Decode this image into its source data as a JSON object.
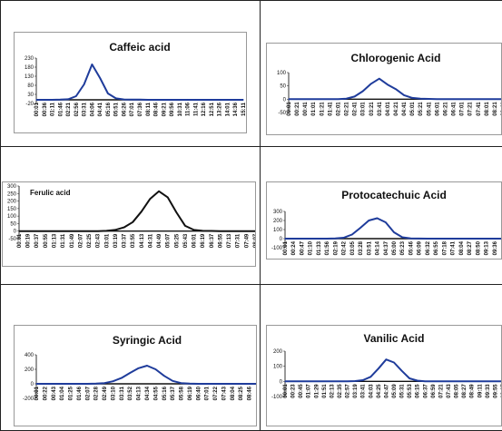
{
  "chart_data": [
    {
      "type": "line",
      "title": "Caffeic acid",
      "color": "#1f3c9b",
      "ylim": [
        -20,
        230
      ],
      "yticks": [
        230,
        180,
        130,
        80,
        30,
        -20
      ],
      "categories": [
        "00:01",
        "00:36",
        "01:11",
        "01:46",
        "02:21",
        "02:56",
        "03:31",
        "04:06",
        "04:41",
        "05:16",
        "05:51",
        "06:26",
        "07:01",
        "07:36",
        "08:11",
        "08:46",
        "09:21",
        "09:56",
        "10:31",
        "11:06",
        "11:41",
        "12:16",
        "12:51",
        "13:26",
        "14:01",
        "14:36",
        "15:11"
      ],
      "series": [
        {
          "values": [
            0,
            0,
            0,
            1,
            3,
            20,
            85,
            195,
            120,
            35,
            8,
            2,
            1,
            1,
            0,
            0,
            0,
            0,
            0,
            0,
            0,
            0,
            0,
            0,
            0,
            0,
            0
          ]
        }
      ]
    },
    {
      "type": "line",
      "title": "Chlorogenic Acid",
      "color": "#1f3c9b",
      "ylim": [
        -50,
        100
      ],
      "yticks": [
        100,
        50,
        0,
        -50
      ],
      "categories": [
        "00:01",
        "00:21",
        "00:41",
        "01:01",
        "01:21",
        "01:41",
        "02:01",
        "02:21",
        "02:41",
        "03:01",
        "03:21",
        "03:41",
        "04:01",
        "04:21",
        "04:41",
        "05:01",
        "05:21",
        "05:41",
        "06:01",
        "06:21",
        "06:41",
        "07:01",
        "07:21",
        "07:41",
        "08:01",
        "08:21",
        "08:41"
      ],
      "series": [
        {
          "values": [
            0,
            0,
            0,
            0,
            0,
            0,
            0,
            2,
            10,
            30,
            58,
            77,
            55,
            38,
            15,
            5,
            2,
            1,
            0,
            0,
            0,
            0,
            0,
            0,
            0,
            0,
            0
          ]
        }
      ]
    },
    {
      "type": "line",
      "title": "Ferulic acid",
      "color": "#111111",
      "ylim": [
        -50,
        300
      ],
      "yticks": [
        300,
        250,
        200,
        150,
        100,
        50,
        0,
        -50
      ],
      "categories": [
        "00:01",
        "00:19",
        "00:37",
        "00:55",
        "01:13",
        "01:31",
        "01:49",
        "02:07",
        "02:25",
        "02:43",
        "03:01",
        "03:19",
        "03:37",
        "03:55",
        "04:13",
        "04:31",
        "04:49",
        "05:07",
        "05:25",
        "05:43",
        "06:01",
        "06:19",
        "06:37",
        "06:55",
        "07:13",
        "07:31",
        "07:49",
        "08:07"
      ],
      "series": [
        {
          "values": [
            0,
            0,
            0,
            0,
            0,
            0,
            0,
            0,
            0,
            0,
            2,
            8,
            25,
            60,
            130,
            215,
            265,
            225,
            125,
            35,
            8,
            2,
            1,
            0,
            0,
            0,
            0,
            0
          ]
        }
      ]
    },
    {
      "type": "line",
      "title": "Protocatechuic Acid",
      "color": "#1f3c9b",
      "ylim": [
        -100,
        300
      ],
      "yticks": [
        300,
        200,
        100,
        0,
        -100
      ],
      "categories": [
        "00:01",
        "00:24",
        "00:47",
        "01:10",
        "01:33",
        "01:56",
        "02:19",
        "02:42",
        "03:05",
        "03:28",
        "03:51",
        "04:14",
        "04:37",
        "05:00",
        "05:23",
        "05:46",
        "06:09",
        "06:32",
        "06:55",
        "07:18",
        "07:41",
        "08:04",
        "08:27",
        "08:50",
        "09:13",
        "09:36",
        "09:59"
      ],
      "series": [
        {
          "values": [
            0,
            0,
            0,
            0,
            0,
            0,
            2,
            10,
            45,
            120,
            200,
            225,
            180,
            70,
            15,
            3,
            1,
            0,
            0,
            0,
            0,
            0,
            0,
            0,
            0,
            0,
            0
          ]
        }
      ]
    },
    {
      "type": "line",
      "title": "Syringic Acid",
      "color": "#1f3c9b",
      "ylim": [
        -200,
        400
      ],
      "yticks": [
        400,
        200,
        0,
        -200
      ],
      "categories": [
        "00:01",
        "00:22",
        "00:43",
        "01:04",
        "01:25",
        "01:46",
        "02:07",
        "02:28",
        "02:49",
        "03:10",
        "03:31",
        "03:52",
        "04:13",
        "04:34",
        "04:55",
        "05:16",
        "05:37",
        "05:58",
        "06:19",
        "06:40",
        "07:01",
        "07:22",
        "07:43",
        "08:04",
        "08:25",
        "08:46",
        "09:07"
      ],
      "series": [
        {
          "values": [
            0,
            0,
            0,
            0,
            0,
            0,
            0,
            2,
            10,
            35,
            80,
            150,
            215,
            250,
            200,
            110,
            40,
            10,
            2,
            0,
            0,
            0,
            0,
            0,
            0,
            0,
            0
          ]
        }
      ]
    },
    {
      "type": "line",
      "title": "Vanilic Acid",
      "color": "#1f3c9b",
      "ylim": [
        -100,
        200
      ],
      "yticks": [
        200,
        100,
        0,
        -100
      ],
      "categories": [
        "00:01",
        "00:23",
        "00:45",
        "01:07",
        "01:29",
        "01:51",
        "02:13",
        "02:35",
        "02:57",
        "03:19",
        "03:41",
        "04:03",
        "04:25",
        "04:47",
        "05:09",
        "05:31",
        "05:53",
        "06:15",
        "06:37",
        "06:59",
        "07:21",
        "07:43",
        "08:05",
        "08:27",
        "08:49",
        "09:11",
        "09:33",
        "09:55",
        "10:17"
      ],
      "series": [
        {
          "values": [
            0,
            0,
            0,
            0,
            0,
            0,
            0,
            0,
            0,
            2,
            8,
            30,
            85,
            145,
            125,
            70,
            20,
            5,
            1,
            0,
            0,
            0,
            0,
            0,
            0,
            0,
            0,
            0,
            0
          ]
        }
      ]
    }
  ]
}
